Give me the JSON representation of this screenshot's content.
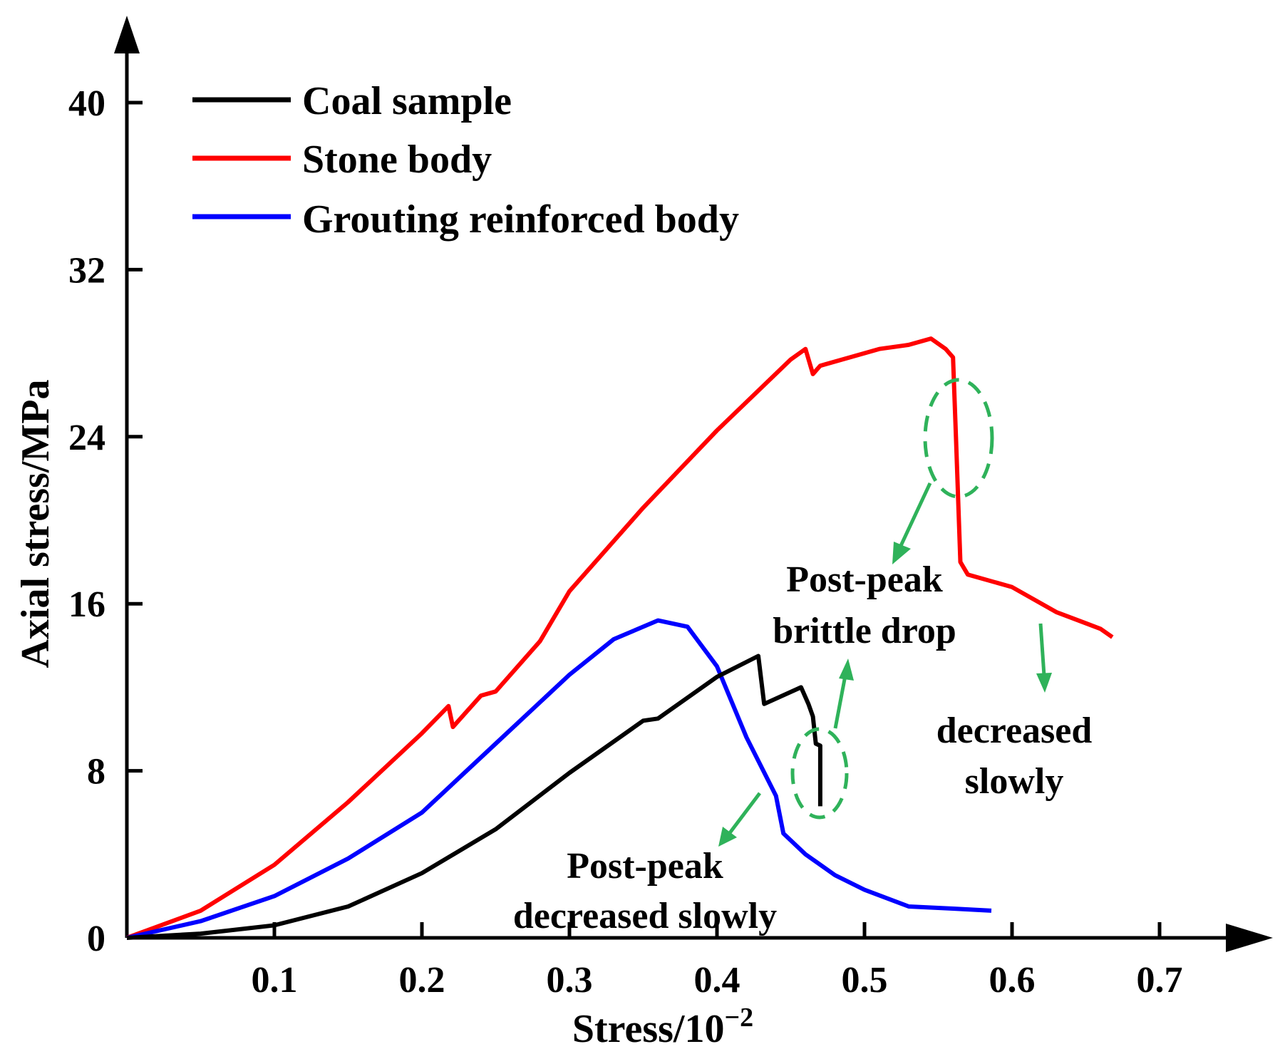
{
  "chart_data": {
    "type": "line",
    "title": "",
    "xlabel": "Stress/10",
    "xlabel_exponent": "−2",
    "ylabel": "Axial stress/MPa",
    "xlim": [
      0,
      0.7
    ],
    "ylim": [
      0,
      40
    ],
    "x_ticks": [
      0.1,
      0.2,
      0.3,
      0.4,
      0.5,
      0.6,
      0.7
    ],
    "x_tick_labels": [
      "0.1",
      "0.2",
      "0.3",
      "0.4",
      "0.5",
      "0.6",
      "0.7"
    ],
    "y_ticks": [
      0,
      8,
      16,
      24,
      32,
      40
    ],
    "y_tick_labels": [
      "0",
      "8",
      "16",
      "24",
      "32",
      "40"
    ],
    "legend_position": "top-left",
    "series": [
      {
        "name": "Coal sample",
        "color": "#000000",
        "points": [
          [
            0,
            0
          ],
          [
            0.05,
            0.2
          ],
          [
            0.1,
            0.6
          ],
          [
            0.15,
            1.5
          ],
          [
            0.2,
            3.1
          ],
          [
            0.25,
            5.2
          ],
          [
            0.3,
            7.9
          ],
          [
            0.35,
            10.4
          ],
          [
            0.36,
            10.5
          ],
          [
            0.4,
            12.5
          ],
          [
            0.428,
            13.5
          ],
          [
            0.432,
            11.2
          ],
          [
            0.457,
            12.0
          ],
          [
            0.462,
            11.2
          ],
          [
            0.465,
            10.6
          ],
          [
            0.467,
            9.3
          ],
          [
            0.47,
            9.2
          ],
          [
            0.47,
            6.3
          ]
        ]
      },
      {
        "name": "Stone body",
        "color": "#ff0000",
        "points": [
          [
            0,
            0
          ],
          [
            0.05,
            1.3
          ],
          [
            0.1,
            3.5
          ],
          [
            0.15,
            6.5
          ],
          [
            0.2,
            9.8
          ],
          [
            0.218,
            11.1
          ],
          [
            0.221,
            10.1
          ],
          [
            0.24,
            11.6
          ],
          [
            0.25,
            11.8
          ],
          [
            0.28,
            14.2
          ],
          [
            0.3,
            16.6
          ],
          [
            0.35,
            20.6
          ],
          [
            0.4,
            24.3
          ],
          [
            0.45,
            27.7
          ],
          [
            0.46,
            28.2
          ],
          [
            0.465,
            27.0
          ],
          [
            0.47,
            27.4
          ],
          [
            0.49,
            27.8
          ],
          [
            0.51,
            28.2
          ],
          [
            0.53,
            28.4
          ],
          [
            0.545,
            28.7
          ],
          [
            0.555,
            28.2
          ],
          [
            0.56,
            27.8
          ],
          [
            0.562,
            24.0
          ],
          [
            0.565,
            18.0
          ],
          [
            0.57,
            17.4
          ],
          [
            0.6,
            16.8
          ],
          [
            0.63,
            15.6
          ],
          [
            0.66,
            14.8
          ],
          [
            0.668,
            14.4
          ]
        ]
      },
      {
        "name": "Grouting reinforced body",
        "color": "#0000ff",
        "points": [
          [
            0,
            0
          ],
          [
            0.05,
            0.8
          ],
          [
            0.1,
            2.0
          ],
          [
            0.15,
            3.8
          ],
          [
            0.2,
            6.0
          ],
          [
            0.25,
            9.3
          ],
          [
            0.3,
            12.6
          ],
          [
            0.33,
            14.3
          ],
          [
            0.36,
            15.2
          ],
          [
            0.38,
            14.9
          ],
          [
            0.4,
            13.0
          ],
          [
            0.42,
            9.6
          ],
          [
            0.44,
            6.8
          ],
          [
            0.445,
            5.0
          ],
          [
            0.46,
            4.0
          ],
          [
            0.48,
            3.0
          ],
          [
            0.5,
            2.3
          ],
          [
            0.53,
            1.5
          ],
          [
            0.56,
            1.4
          ],
          [
            0.586,
            1.3
          ]
        ]
      }
    ],
    "annotations": {
      "brittle_line1": "Post-peak",
      "brittle_line2": "brittle drop",
      "slow_line1": "Post-peak",
      "slow_line2": "decreased slowly",
      "stone_line1": "decreased",
      "stone_line2": "slowly",
      "annotation_color": "#2fb25a"
    }
  }
}
